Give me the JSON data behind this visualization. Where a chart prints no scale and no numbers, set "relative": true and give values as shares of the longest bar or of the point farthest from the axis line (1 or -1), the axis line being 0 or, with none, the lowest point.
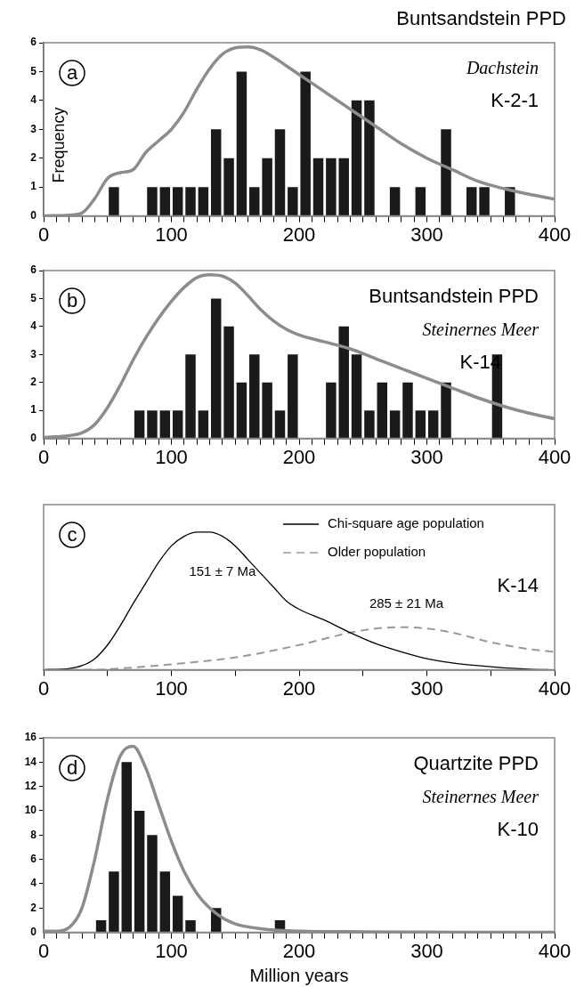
{
  "chart_data": [
    {
      "type": "histogram",
      "title": "Buntsandstein PPD",
      "subtitle": "Dachstein",
      "ylabel": "Frequency",
      "annotations": [
        "a",
        "K-2-1"
      ],
      "xlim": [
        0,
        400
      ],
      "ylim": [
        0,
        6
      ],
      "yticks": [
        0,
        1,
        2,
        3,
        4,
        5,
        6
      ],
      "xticks": [
        0,
        {
          "value": 10,
          "label": null
        },
        {
          "value": 20,
          "label": null
        },
        {
          "value": 30,
          "label": null
        },
        {
          "value": 40,
          "label": null
        },
        {
          "value": 50,
          "label": null
        },
        {
          "value": 60,
          "label": null
        },
        {
          "value": 70,
          "label": null
        },
        {
          "value": 80,
          "label": null
        },
        {
          "value": 90,
          "label": null
        },
        100,
        {
          "value": 110,
          "label": null
        },
        {
          "value": 120,
          "label": null
        },
        {
          "value": 130,
          "label": null
        },
        {
          "value": 140,
          "label": null
        },
        {
          "value": 150,
          "label": null
        },
        {
          "value": 160,
          "label": null
        },
        {
          "value": 170,
          "label": null
        },
        {
          "value": 180,
          "label": null
        },
        {
          "value": 190,
          "label": null
        },
        200,
        {
          "value": 210,
          "label": null
        },
        {
          "value": 220,
          "label": null
        },
        {
          "value": 230,
          "label": null
        },
        {
          "value": 240,
          "label": null
        },
        {
          "value": 250,
          "label": null
        },
        {
          "value": 260,
          "label": null
        },
        {
          "value": 270,
          "label": null
        },
        {
          "value": 280,
          "label": null
        },
        {
          "value": 290,
          "label": null
        },
        300,
        {
          "value": 310,
          "label": null
        },
        {
          "value": 320,
          "label": null
        },
        {
          "value": 330,
          "label": null
        },
        {
          "value": 340,
          "label": null
        },
        {
          "value": 350,
          "label": null
        },
        {
          "value": 360,
          "label": null
        },
        {
          "value": 370,
          "label": null
        },
        {
          "value": 380,
          "label": null
        },
        {
          "value": 390,
          "label": null
        },
        400
      ],
      "series": [
        {
          "type": "histogram",
          "color": "#1a1a1a",
          "bins": [
            50,
            60,
            70,
            80,
            90,
            100,
            110,
            120,
            130,
            140,
            150,
            160,
            170,
            180,
            190,
            200,
            210,
            220,
            230,
            240,
            250,
            260,
            270,
            280,
            290,
            300,
            310,
            320,
            330,
            340,
            350,
            360,
            370
          ],
          "values": [
            1,
            0,
            0,
            1,
            1,
            1,
            1,
            1,
            3,
            2,
            5,
            1,
            2,
            3,
            1,
            5,
            2,
            2,
            2,
            4,
            4,
            0,
            1,
            0,
            1,
            0,
            3,
            0,
            1,
            1,
            0,
            1
          ]
        },
        {
          "type": "line",
          "color": "#8c8c8c",
          "x": [
            0,
            20,
            30,
            40,
            50,
            60,
            70,
            80,
            90,
            100,
            110,
            120,
            130,
            140,
            150,
            160,
            170,
            180,
            190,
            200,
            220,
            240,
            260,
            280,
            300,
            320,
            340,
            360,
            380,
            400
          ],
          "values": [
            0,
            0.03,
            0.1,
            0.6,
            1.3,
            1.5,
            1.6,
            2.2,
            2.6,
            3.0,
            3.6,
            4.4,
            5.1,
            5.6,
            5.82,
            5.85,
            5.75,
            5.5,
            5.2,
            4.9,
            4.3,
            3.7,
            3.1,
            2.5,
            2.0,
            1.6,
            1.2,
            0.95,
            0.75,
            0.58
          ]
        }
      ]
    },
    {
      "type": "histogram",
      "title": "Buntsandstein PPD",
      "subtitle": "Steinernes Meer",
      "annotations": [
        "b",
        "K-14"
      ],
      "xlim": [
        0,
        400
      ],
      "ylim": [
        0,
        6
      ],
      "yticks": [
        0,
        1,
        2,
        3,
        4,
        5,
        6
      ],
      "xticks": [
        0,
        {
          "value": 10,
          "label": null
        },
        {
          "value": 20,
          "label": null
        },
        {
          "value": 30,
          "label": null
        },
        {
          "value": 40,
          "label": null
        },
        {
          "value": 50,
          "label": null
        },
        {
          "value": 60,
          "label": null
        },
        {
          "value": 70,
          "label": null
        },
        {
          "value": 80,
          "label": null
        },
        {
          "value": 90,
          "label": null
        },
        100,
        {
          "value": 110,
          "label": null
        },
        {
          "value": 120,
          "label": null
        },
        {
          "value": 130,
          "label": null
        },
        {
          "value": 140,
          "label": null
        },
        {
          "value": 150,
          "label": null
        },
        {
          "value": 160,
          "label": null
        },
        {
          "value": 170,
          "label": null
        },
        {
          "value": 180,
          "label": null
        },
        {
          "value": 190,
          "label": null
        },
        200,
        {
          "value": 210,
          "label": null
        },
        {
          "value": 220,
          "label": null
        },
        {
          "value": 230,
          "label": null
        },
        {
          "value": 240,
          "label": null
        },
        {
          "value": 250,
          "label": null
        },
        {
          "value": 260,
          "label": null
        },
        {
          "value": 270,
          "label": null
        },
        {
          "value": 280,
          "label": null
        },
        {
          "value": 290,
          "label": null
        },
        300,
        {
          "value": 310,
          "label": null
        },
        {
          "value": 320,
          "label": null
        },
        {
          "value": 330,
          "label": null
        },
        {
          "value": 340,
          "label": null
        },
        {
          "value": 350,
          "label": null
        },
        {
          "value": 360,
          "label": null
        },
        {
          "value": 370,
          "label": null
        },
        {
          "value": 380,
          "label": null
        },
        {
          "value": 390,
          "label": null
        },
        400
      ],
      "series": [
        {
          "type": "histogram",
          "color": "#1a1a1a",
          "bins": [
            70,
            80,
            90,
            100,
            110,
            120,
            130,
            140,
            150,
            160,
            170,
            180,
            190,
            200,
            210,
            220,
            230,
            240,
            250,
            260,
            270,
            280,
            290,
            300,
            310,
            320,
            330,
            340,
            350,
            360
          ],
          "values": [
            1,
            1,
            1,
            1,
            3,
            1,
            5,
            4,
            2,
            3,
            2,
            1,
            3,
            0,
            0,
            2,
            4,
            3,
            1,
            2,
            1,
            2,
            1,
            1,
            2,
            0,
            0,
            0,
            3
          ]
        },
        {
          "type": "line",
          "color": "#8c8c8c",
          "x": [
            0,
            20,
            30,
            40,
            50,
            60,
            70,
            80,
            90,
            100,
            110,
            120,
            130,
            140,
            150,
            160,
            170,
            180,
            190,
            200,
            220,
            240,
            260,
            280,
            300,
            320,
            340,
            360,
            380,
            400
          ],
          "values": [
            0.03,
            0.1,
            0.2,
            0.5,
            1.1,
            1.9,
            2.8,
            3.6,
            4.3,
            4.9,
            5.4,
            5.75,
            5.85,
            5.8,
            5.55,
            5.1,
            4.6,
            4.2,
            3.9,
            3.7,
            3.45,
            3.2,
            2.85,
            2.5,
            2.15,
            1.8,
            1.45,
            1.15,
            0.9,
            0.7
          ]
        }
      ]
    },
    {
      "type": "line",
      "relative": true,
      "tick_labels": "x",
      "legend": "top right",
      "annotations": [
        "c",
        "K-14",
        "151 ± 7 Ma",
        "285 ± 21 Ma"
      ],
      "xlim": [
        0,
        400
      ],
      "xticks": [
        0,
        {
          "value": 50,
          "label": null
        },
        100,
        {
          "value": 150,
          "label": null
        },
        200,
        {
          "value": 250,
          "label": null
        },
        300,
        {
          "value": 350,
          "label": null
        },
        400
      ],
      "series": [
        {
          "type": "line",
          "name": "Chi-square age population",
          "color": "#000000",
          "line_style": "solid",
          "x": [
            0,
            20,
            30,
            40,
            50,
            60,
            70,
            80,
            90,
            100,
            110,
            120,
            130,
            140,
            150,
            160,
            170,
            180,
            190,
            200,
            220,
            240,
            260,
            280,
            300,
            320,
            340,
            360,
            380,
            400
          ],
          "values": [
            0,
            0.01,
            0.03,
            0.08,
            0.18,
            0.32,
            0.48,
            0.63,
            0.78,
            0.9,
            0.97,
            1.0,
            1.0,
            0.97,
            0.9,
            0.8,
            0.7,
            0.6,
            0.5,
            0.44,
            0.36,
            0.27,
            0.19,
            0.13,
            0.08,
            0.05,
            0.03,
            0.015,
            0.005,
            0
          ]
        },
        {
          "type": "line",
          "name": "Older population",
          "color": "#999999",
          "line_style": "dashed",
          "x": [
            0,
            40,
            60,
            100,
            150,
            200,
            240,
            260,
            280,
            300,
            320,
            350,
            380,
            400
          ],
          "values": [
            0,
            0,
            0.01,
            0.04,
            0.09,
            0.18,
            0.27,
            0.3,
            0.31,
            0.3,
            0.27,
            0.2,
            0.15,
            0.13
          ]
        }
      ]
    },
    {
      "type": "histogram",
      "title": "Quartzite PPD",
      "subtitle": "Steinernes Meer",
      "xlabel": "Million years",
      "annotations": [
        "d",
        "K-10"
      ],
      "xlim": [
        0,
        400
      ],
      "ylim": [
        0,
        16
      ],
      "yticks": [
        0,
        2,
        4,
        6,
        8,
        10,
        12,
        14,
        16
      ],
      "xticks": [
        0,
        {
          "value": 10,
          "label": null
        },
        {
          "value": 20,
          "label": null
        },
        {
          "value": 30,
          "label": null
        },
        {
          "value": 40,
          "label": null
        },
        {
          "value": 50,
          "label": null
        },
        {
          "value": 60,
          "label": null
        },
        {
          "value": 70,
          "label": null
        },
        {
          "value": 80,
          "label": null
        },
        {
          "value": 90,
          "label": null
        },
        100,
        {
          "value": 110,
          "label": null
        },
        {
          "value": 120,
          "label": null
        },
        {
          "value": 130,
          "label": null
        },
        {
          "value": 140,
          "label": null
        },
        {
          "value": 150,
          "label": null
        },
        {
          "value": 160,
          "label": null
        },
        {
          "value": 170,
          "label": null
        },
        {
          "value": 180,
          "label": null
        },
        {
          "value": 190,
          "label": null
        },
        200,
        {
          "value": 210,
          "label": null
        },
        {
          "value": 220,
          "label": null
        },
        {
          "value": 230,
          "label": null
        },
        {
          "value": 240,
          "label": null
        },
        {
          "value": 250,
          "label": null
        },
        {
          "value": 260,
          "label": null
        },
        {
          "value": 270,
          "label": null
        },
        {
          "value": 280,
          "label": null
        },
        {
          "value": 290,
          "label": null
        },
        300,
        {
          "value": 310,
          "label": null
        },
        {
          "value": 320,
          "label": null
        },
        {
          "value": 330,
          "label": null
        },
        {
          "value": 340,
          "label": null
        },
        {
          "value": 350,
          "label": null
        },
        {
          "value": 360,
          "label": null
        },
        {
          "value": 370,
          "label": null
        },
        {
          "value": 380,
          "label": null
        },
        {
          "value": 390,
          "label": null
        },
        400
      ],
      "series": [
        {
          "type": "histogram",
          "color": "#1a1a1a",
          "bins": [
            40,
            50,
            60,
            70,
            80,
            90,
            100,
            110,
            120,
            130,
            140,
            150,
            160,
            170,
            180,
            190
          ],
          "values": [
            1,
            5,
            14,
            10,
            8,
            5,
            3,
            1,
            0,
            2,
            0,
            0,
            0,
            0,
            1
          ]
        },
        {
          "type": "line",
          "color": "#8c8c8c",
          "x": [
            0,
            10,
            20,
            30,
            40,
            50,
            60,
            70,
            80,
            90,
            100,
            110,
            120,
            130,
            140,
            150,
            170,
            200,
            250,
            300,
            400
          ],
          "values": [
            0.1,
            0.1,
            0.4,
            2,
            6,
            11,
            14.5,
            15.3,
            13.5,
            10.5,
            7.5,
            5,
            3.2,
            2,
            1.2,
            0.7,
            0.3,
            0.1,
            0.05,
            0.02,
            0
          ]
        }
      ]
    }
  ]
}
